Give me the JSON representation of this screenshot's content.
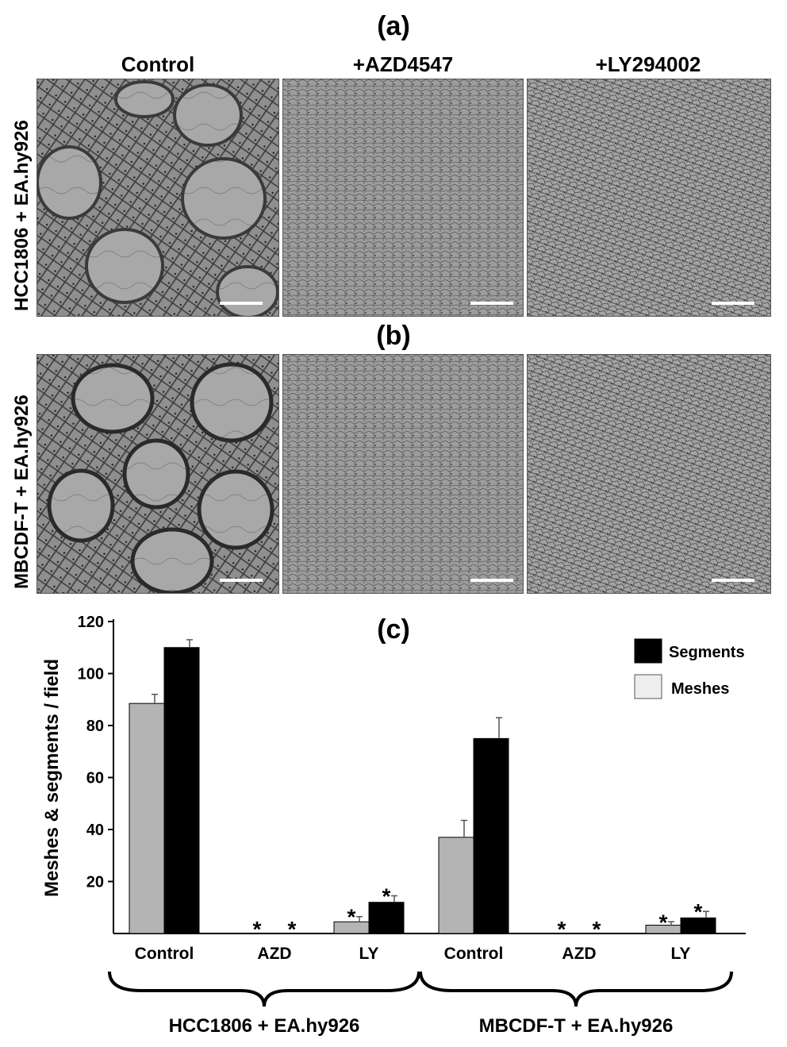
{
  "panels": {
    "a_label": "(a)",
    "b_label": "(b)",
    "c_label": "(c)"
  },
  "columns": [
    "Control",
    "+AZD4547",
    "+LY294002"
  ],
  "rows": [
    "HCC1806 + EA.hy926",
    "MBCDF-T + EA.hy926"
  ],
  "colors": {
    "meshes": "#b4b4b4",
    "segments": "#000000",
    "legend_meshes": "#eeeeee"
  },
  "chart_data": {
    "type": "bar",
    "ylabel": "Meshes & segments / field",
    "ylim": [
      0,
      120
    ],
    "yticks": [
      20,
      40,
      60,
      80,
      100,
      120
    ],
    "categories": [
      "Control",
      "AZD",
      "LY",
      "Control",
      "AZD",
      "LY"
    ],
    "groups": [
      "HCC1806 + EA.hy926",
      "MBCDF-T + EA.hy926"
    ],
    "series": [
      {
        "name": "Meshes",
        "values": [
          88.5,
          0,
          4.5,
          37,
          0,
          3.2
        ],
        "errors": [
          3.5,
          0,
          2,
          6.5,
          0,
          1.3
        ]
      },
      {
        "name": "Segments",
        "values": [
          110,
          0,
          12,
          75,
          0,
          6
        ],
        "errors": [
          3,
          0,
          2.5,
          8,
          0,
          2.5
        ]
      }
    ],
    "significance": "*",
    "significant": [
      false,
      true,
      true,
      false,
      true,
      true
    ],
    "legend": [
      "Segments",
      "Meshes"
    ],
    "legend_position": "top-right"
  }
}
